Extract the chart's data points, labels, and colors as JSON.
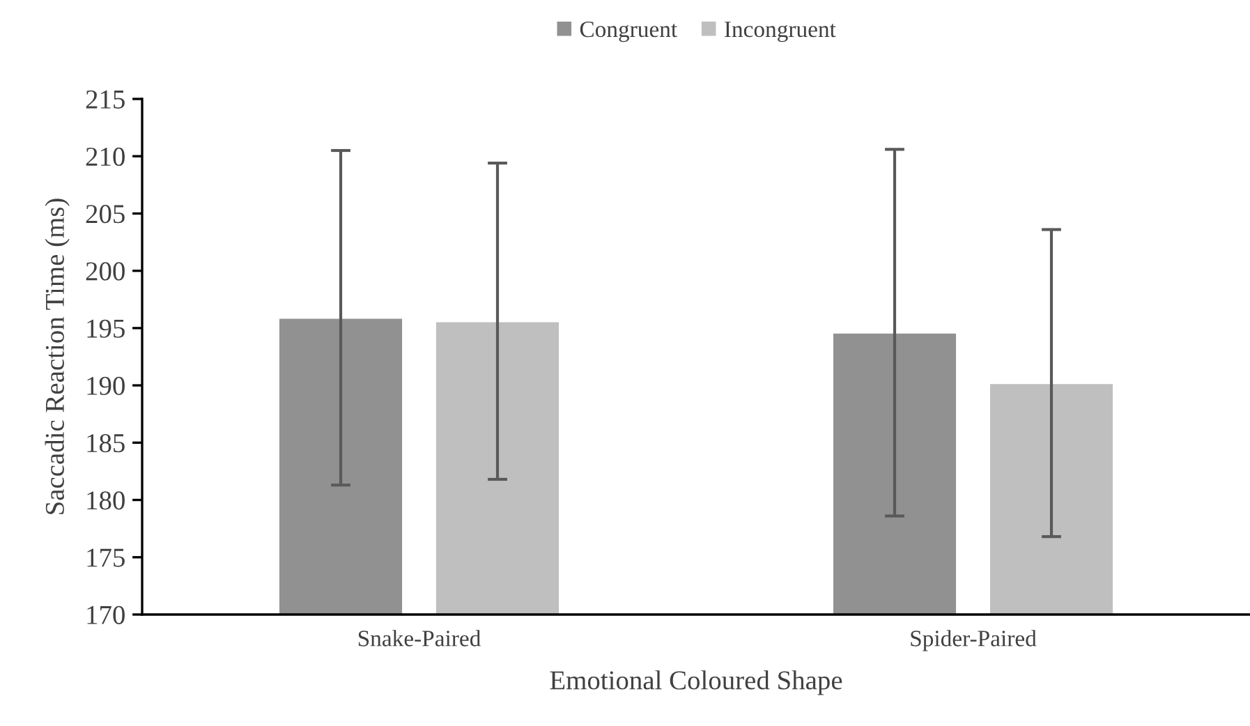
{
  "chart_data": {
    "type": "bar",
    "xlabel": "Emotional Coloured Shape",
    "ylabel": "Saccadic Reaction Time (ms)",
    "categories": [
      "Snake-Paired",
      "Spider-Paired"
    ],
    "series": [
      {
        "name": "Congruent",
        "color": "#919191",
        "values": [
          195.9,
          194.6
        ],
        "errors": [
          14.6,
          16.0
        ]
      },
      {
        "name": "Incongruent",
        "color": "#bfbfbf",
        "values": [
          195.6,
          190.2
        ],
        "errors": [
          13.8,
          13.4
        ]
      }
    ],
    "ylim": [
      170,
      215
    ],
    "yticks": [
      170,
      175,
      180,
      185,
      190,
      195,
      200,
      205,
      210,
      215
    ],
    "grid": false,
    "legend": "top"
  }
}
